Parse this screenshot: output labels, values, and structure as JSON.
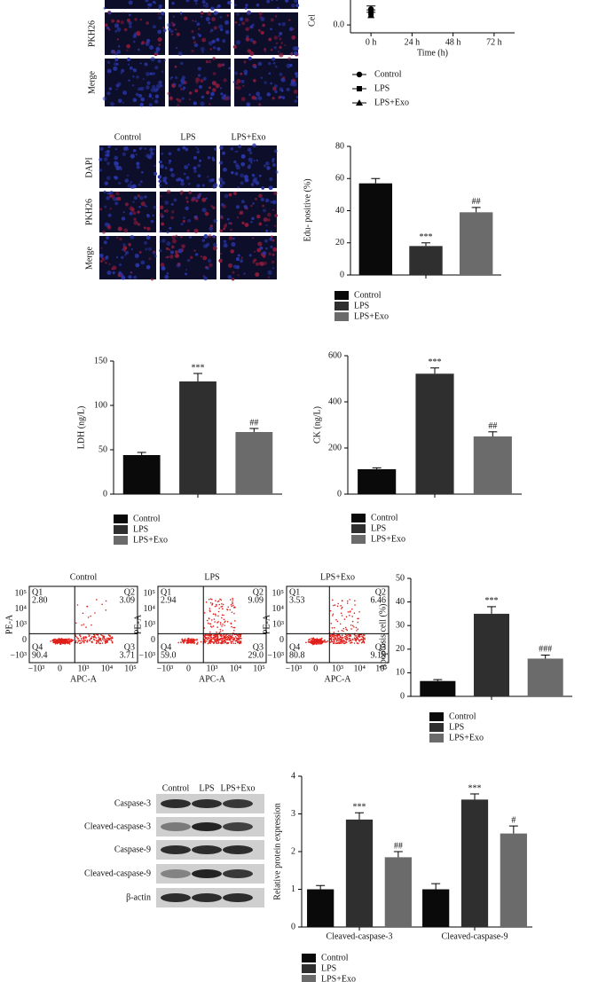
{
  "panels": {
    "viability_images": {
      "row_labels": [
        "PKH26",
        "Merge"
      ]
    },
    "edu_images": {
      "column_labels": [
        "Control",
        "LPS",
        "LPS+Exo"
      ],
      "row_labels": [
        "DAPI",
        "PKH26",
        "Merge"
      ]
    },
    "flow": {
      "x_label": "APC-A",
      "y_label": "PE-A",
      "x_ticks": [
        "−10³",
        "0",
        "10³",
        "10⁴",
        "10⁵"
      ],
      "y_ticks": [
        "10⁵",
        "10⁴",
        "10³",
        "0",
        "−10³"
      ],
      "plots": [
        {
          "title": "Control",
          "quadrants": [
            {
              "name": "Q1",
              "value": "2.80"
            },
            {
              "name": "Q2",
              "value": "3.09"
            },
            {
              "name": "Q3",
              "value": "3.71"
            },
            {
              "name": "Q4",
              "value": "90.4"
            }
          ]
        },
        {
          "title": "LPS",
          "quadrants": [
            {
              "name": "Q1",
              "value": "2.94"
            },
            {
              "name": "Q2",
              "value": "9.09"
            },
            {
              "name": "Q3",
              "value": "29.0"
            },
            {
              "name": "Q4",
              "value": "59.0"
            }
          ]
        },
        {
          "title": "LPS+Exo",
          "quadrants": [
            {
              "name": "Q1",
              "value": "3.53"
            },
            {
              "name": "Q2",
              "value": "6.46"
            },
            {
              "name": "Q3",
              "value": "9.19"
            },
            {
              "name": "Q4",
              "value": "80.8"
            }
          ]
        }
      ]
    },
    "blot": {
      "column_labels": [
        "Control",
        "LPS",
        "LPS+Exo"
      ],
      "row_labels": [
        "Caspase-3",
        "Cleaved-caspase-3",
        "Caspase-9",
        "Cleaved-caspase-9",
        "β-actin"
      ]
    }
  },
  "chart_data": [
    {
      "type": "line",
      "ylabel": "Cel",
      "xlabel": "Time (h)",
      "categories": [
        "0 h",
        "24 h",
        "48 h",
        "72 h"
      ],
      "ylim": [
        -0.1,
        2.0
      ],
      "yticks": [
        {
          "value": 0,
          "label": "0.0"
        }
      ],
      "series": [
        {
          "name": "Control",
          "color": "#000000",
          "marker": "circle",
          "values": [
            0.2,
            null,
            null,
            null
          ],
          "errors": [
            0.04,
            null,
            null,
            null
          ]
        },
        {
          "name": "LPS",
          "color": "#000000",
          "marker": "square",
          "values": [
            0.15,
            null,
            null,
            null
          ],
          "errors": [
            0.04,
            null,
            null,
            null
          ]
        },
        {
          "name": "LPS+Exo",
          "color": "#000000",
          "marker": "triangle",
          "values": [
            0.12,
            null,
            null,
            null
          ],
          "errors": [
            0.04,
            null,
            null,
            null
          ]
        }
      ]
    },
    {
      "type": "bar",
      "ylabel": "Edu- positive (%)",
      "categories": [
        "Control",
        "LPS",
        "LPS+Exo"
      ],
      "colors": [
        "#0a0a0a",
        "#2f2f2f",
        "#6b6b6b"
      ],
      "values": [
        57,
        18,
        39
      ],
      "errors": [
        3,
        2,
        3
      ],
      "annotations": [
        null,
        "***",
        "##"
      ],
      "ylim": [
        0,
        80
      ],
      "yticks": [
        0,
        20,
        40,
        60,
        80
      ]
    },
    {
      "type": "bar",
      "ylabel": "LDH (ng/L)",
      "categories": [
        "Control",
        "LPS",
        "LPS+Exo"
      ],
      "colors": [
        "#0a0a0a",
        "#2f2f2f",
        "#6b6b6b"
      ],
      "values": [
        44,
        127,
        70
      ],
      "errors": [
        3,
        9,
        4
      ],
      "annotations": [
        null,
        "***",
        "##"
      ],
      "ylim": [
        0,
        150
      ],
      "yticks": [
        0,
        50,
        100,
        150
      ]
    },
    {
      "type": "bar",
      "ylabel": "CK (ng/L)",
      "categories": [
        "Control",
        "LPS",
        "LPS+Exo"
      ],
      "colors": [
        "#0a0a0a",
        "#2f2f2f",
        "#6b6b6b"
      ],
      "values": [
        108,
        522,
        250
      ],
      "errors": [
        6,
        25,
        20
      ],
      "annotations": [
        null,
        "***",
        "##"
      ],
      "ylim": [
        0,
        600
      ],
      "yticks": [
        0,
        200,
        400,
        600
      ]
    },
    {
      "type": "bar",
      "ylabel": "Apoptosis cell (%)",
      "categories": [
        "Control",
        "LPS",
        "LPS+Exo"
      ],
      "colors": [
        "#0a0a0a",
        "#2f2f2f",
        "#6b6b6b"
      ],
      "values": [
        6.5,
        35,
        16
      ],
      "errors": [
        0.6,
        3,
        1.5
      ],
      "annotations": [
        null,
        "***",
        "###"
      ],
      "ylim": [
        0,
        50
      ],
      "yticks": [
        0,
        10,
        20,
        30,
        40,
        50
      ]
    },
    {
      "type": "grouped_bar",
      "ylabel": "Relative protein expression",
      "categories": [
        "Cleaved-caspase-3",
        "Cleaved-caspase-9"
      ],
      "ylim": [
        0,
        4
      ],
      "yticks": [
        0,
        1,
        2,
        3,
        4
      ],
      "series": [
        {
          "name": "Control",
          "color": "#0a0a0a",
          "values": [
            1.0,
            1.0
          ],
          "errors": [
            0.1,
            0.15
          ]
        },
        {
          "name": "LPS",
          "color": "#2f2f2f",
          "values": [
            2.85,
            3.38
          ],
          "errors": [
            0.18,
            0.15
          ],
          "annotations": [
            "***",
            "***"
          ]
        },
        {
          "name": "LPS+Exo",
          "color": "#6b6b6b",
          "values": [
            1.85,
            2.48
          ],
          "errors": [
            0.15,
            0.2
          ],
          "annotations": [
            "##",
            "#"
          ]
        }
      ]
    }
  ]
}
